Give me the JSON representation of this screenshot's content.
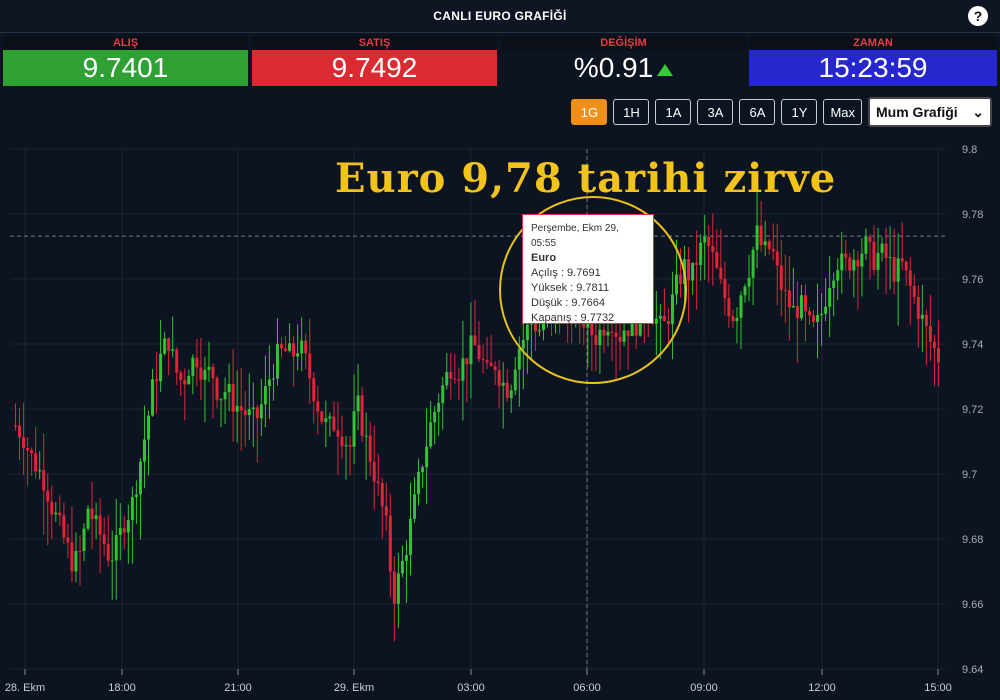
{
  "header": {
    "title": "CANLI EURO GRAFİĞİ",
    "help_icon": "question-icon",
    "help_label": "?"
  },
  "quotes": [
    {
      "key": "alis",
      "label": "ALIŞ",
      "value": "9.7401"
    },
    {
      "key": "satis",
      "label": "SATIŞ",
      "value": "9.7492"
    },
    {
      "key": "degisim",
      "label": "DEĞİŞİM",
      "value": "%0.91"
    },
    {
      "key": "zaman",
      "label": "ZAMAN",
      "value": "15:23:59"
    }
  ],
  "toolbar": {
    "buttons": [
      "1G",
      "1H",
      "1A",
      "3A",
      "6A",
      "1Y",
      "Max"
    ],
    "active": "1G",
    "select_value": "Mum Grafiği"
  },
  "headline": "Euro 9,78 tarihi zirve",
  "tooltip": {
    "date": "Perşembe, Ekm 29, 05:55",
    "name": "Euro",
    "open": "Açılış : 9.7691",
    "high": "Yüksek : 9.7811",
    "low": "Düşük : 9.7664",
    "close": "Kapanış : 9.7732"
  },
  "colors": {
    "up": "#33c233",
    "down": "#e0243a",
    "headline": "#f2c31b",
    "circle": "#e8c21a"
  },
  "chart_data": {
    "type": "candlestick",
    "yticks": [
      "9.8",
      "9.78",
      "9.76",
      "9.74",
      "9.72",
      "9.7",
      "9.68",
      "9.66",
      "9.64"
    ],
    "ylim": [
      9.64,
      9.8
    ],
    "xticks": [
      "28. Ekm",
      "18:00",
      "21:00",
      "29. Ekm",
      "03:00",
      "06:00",
      "09:00",
      "12:00",
      "15:00"
    ],
    "crosshair_y": 9.7732,
    "series": [
      {
        "close_path": [
          9.715,
          9.712,
          9.706,
          9.702,
          9.698,
          9.69,
          9.684,
          9.678,
          9.672,
          9.676,
          9.69,
          9.684,
          9.68,
          9.674,
          9.678,
          9.686,
          9.69,
          9.702,
          9.714,
          9.728,
          9.736,
          9.742,
          9.732,
          9.728,
          9.734,
          9.736,
          9.73,
          9.732,
          9.724,
          9.726,
          9.722,
          9.72,
          9.718,
          9.716,
          9.722,
          9.73,
          9.736,
          9.738,
          9.736,
          9.74,
          9.734,
          9.726,
          9.718,
          9.714,
          9.716,
          9.712,
          9.708,
          9.722,
          9.712,
          9.704,
          9.694,
          9.684,
          9.662,
          9.67,
          9.68,
          9.692,
          9.704,
          9.714,
          9.722,
          9.728,
          9.734,
          9.732,
          9.736,
          9.74,
          9.736,
          9.73,
          9.734,
          9.728,
          9.726,
          9.738,
          9.742,
          9.748,
          9.744,
          9.75,
          9.746,
          9.752,
          9.748,
          9.752,
          9.748,
          9.744,
          9.742,
          9.746,
          9.748,
          9.742,
          9.746,
          9.744,
          9.75,
          9.752,
          9.748,
          9.744,
          9.75,
          9.758,
          9.764,
          9.76,
          9.768,
          9.772,
          9.766,
          9.758,
          9.752,
          9.748,
          9.758,
          9.764,
          9.774,
          9.768,
          9.77,
          9.76,
          9.754,
          9.75,
          9.752,
          9.746,
          9.744,
          9.75,
          9.76,
          9.766,
          9.764,
          9.766,
          9.768,
          9.77,
          9.766,
          9.768,
          9.766,
          9.762,
          9.764,
          9.758,
          9.752,
          9.746,
          9.74,
          9.736
        ]
      }
    ]
  }
}
